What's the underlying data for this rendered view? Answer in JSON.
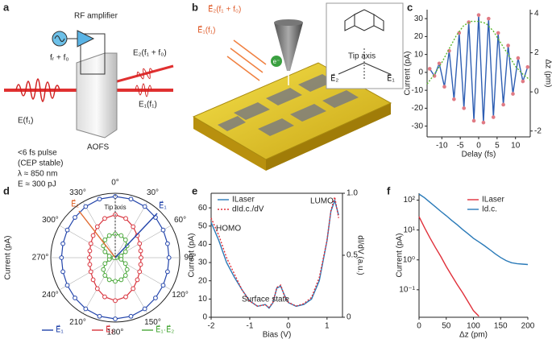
{
  "panel_labels": [
    "a",
    "b",
    "c",
    "d",
    "e",
    "f"
  ],
  "panel_a": {
    "rf_amplifier": "RF amplifier",
    "rf_freq": "fᵣ + f₀",
    "input_field": "E(f₁)",
    "deflected_field": "E₂(f₁ + f₀)",
    "transmitted_field": "E₁(f₁)",
    "aofs": "AOFS",
    "pulse_specs": [
      "<6 fs pulse",
      "(CEP stable)",
      "λ ≈ 850 nm",
      "E ≈ 300 pJ"
    ]
  },
  "panel_b": {
    "field_2": "E⃗₂(f₁ + f₀)",
    "field_1": "E⃗₁(f₁)",
    "electron": "e⁻",
    "inset_title": "Tip axis",
    "inset_field_2": "E⃗₂",
    "inset_field_1": "E⃗₁"
  },
  "chart_data": [
    {
      "type": "line",
      "x_label": "Delay (fs)",
      "y_label": "Current (pA)",
      "y2_label": "Δz (pm)",
      "xlim": [
        -14,
        14
      ],
      "xticks": [
        -10,
        -5,
        0,
        5,
        10
      ],
      "ylim": [
        -36,
        35
      ],
      "yticks": [
        -30,
        -20,
        -10,
        0,
        10,
        20,
        30
      ],
      "y2lim": [
        -2.3,
        4.2
      ],
      "y2ticks": [
        -2,
        0,
        2,
        4
      ],
      "x": [
        -13.3,
        -12,
        -10.7,
        -9.3,
        -8,
        -6.7,
        -5.3,
        -4,
        -2.7,
        -1.3,
        0,
        1.3,
        2.7,
        4,
        5.3,
        6.7,
        8,
        9.3,
        10.7,
        12,
        13.3
      ],
      "series": [
        {
          "color": "#2f5fb3",
          "marker_color": "#e07a84",
          "values": [
            2,
            -2,
            5,
            -8,
            12,
            -15,
            22,
            -20,
            28,
            -27,
            32,
            -28,
            30,
            -25,
            22,
            -18,
            15,
            -12,
            8,
            -5,
            3
          ]
        },
        {
          "color": "#5cb82e",
          "dash": "2,2",
          "axis": "y2",
          "x": [
            -14,
            -12,
            -10,
            -8,
            -6,
            -4,
            -2,
            0,
            2,
            4,
            6,
            8,
            10,
            12,
            14
          ],
          "values": [
            0.4,
            0.9,
            1.5,
            2.2,
            2.9,
            3.4,
            3.6,
            3.6,
            3.5,
            3.1,
            2.5,
            1.9,
            1.3,
            0.9,
            0.6
          ]
        }
      ]
    },
    {
      "type": "polar",
      "y_label": "Current (pA)",
      "rlim": [
        0,
        60
      ],
      "theta": [
        0,
        15,
        30,
        45,
        60,
        75,
        90,
        105,
        120,
        135,
        150,
        165,
        180,
        195,
        210,
        225,
        240,
        255,
        270,
        285,
        300,
        315,
        330,
        345
      ],
      "thetaticks": [
        {
          "value": 0,
          "label": "0°"
        },
        {
          "value": 30,
          "label": "30°"
        },
        {
          "value": 60,
          "label": "60°"
        },
        {
          "value": 90,
          "label": "90°"
        },
        {
          "value": 120,
          "label": "120°"
        },
        {
          "value": 150,
          "label": "150°"
        },
        {
          "value": 180,
          "label": "180°"
        },
        {
          "value": 210,
          "label": "210°"
        },
        {
          "value": 240,
          "label": "240°"
        },
        {
          "value": 270,
          "label": "270°"
        },
        {
          "value": 300,
          "label": "300°"
        },
        {
          "value": 330,
          "label": "330°"
        }
      ],
      "annotations": [
        "Tip axis",
        "E⃗₂",
        "E⃗₁"
      ],
      "series": [
        {
          "name": "E⃗₁",
          "color": "#2244aa",
          "values": [
            57,
            56.5,
            55,
            53,
            51.5,
            50.4,
            50,
            50.4,
            51.5,
            53,
            55,
            56.5,
            57,
            56.5,
            55,
            53,
            51.5,
            50.4,
            50,
            50.4,
            51.5,
            53,
            55,
            56.5
          ]
        },
        {
          "name": "E⃗₂",
          "color": "#d8323c",
          "values": [
            40,
            37.8,
            33.3,
            29.1,
            26.2,
            24.5,
            24,
            24.5,
            26.2,
            29.1,
            33.3,
            37.8,
            40,
            37.8,
            33.3,
            29.1,
            26.2,
            24.5,
            24,
            24.5,
            26.2,
            29.1,
            33.3,
            37.8
          ]
        },
        {
          "name": "E⃗₁·E⃗₂",
          "color": "#4aa83a",
          "values": [
            22,
            21.3,
            19.1,
            15.6,
            11,
            5.7,
            1,
            5.7,
            11,
            15.6,
            19.1,
            21.3,
            22,
            21.3,
            19.1,
            15.6,
            11,
            5.7,
            1,
            5.7,
            11,
            15.6,
            19.1,
            21.3
          ]
        }
      ]
    },
    {
      "type": "line",
      "x_label": "Bias (V)",
      "y_label": "Current (pA)",
      "y2_label": "dI/dV (a.u.)",
      "xlim": [
        -2,
        1.4
      ],
      "xticks": [
        -2,
        -1,
        0,
        1
      ],
      "ylim": [
        0,
        68
      ],
      "yticks": [
        0,
        10,
        20,
        30,
        40,
        50,
        60
      ],
      "y2lim": [
        0,
        1
      ],
      "y2ticks": [
        0,
        0.5,
        {
          "value": 1,
          "label": "1.0"
        }
      ],
      "legend": "upper left",
      "annotations": [
        "HOMO",
        "Surface state",
        "LUMO"
      ],
      "x": [
        -2,
        -1.8,
        -1.6,
        -1.4,
        -1.2,
        -1,
        -0.8,
        -0.6,
        -0.5,
        -0.4,
        -0.3,
        -0.2,
        -0.1,
        0,
        0.2,
        0.4,
        0.6,
        0.8,
        1,
        1.1,
        1.2,
        1.3
      ],
      "series": [
        {
          "name": "ILaser",
          "color": "#2a7ab8",
          "values": [
            52,
            42,
            30,
            22,
            15,
            9,
            6,
            7,
            5,
            8,
            16,
            17,
            12,
            8,
            6,
            7,
            10,
            20,
            42,
            58,
            64,
            56
          ]
        },
        {
          "name": "dId.c./dV",
          "color": "#e0303a",
          "dash": "2,2",
          "axis": "y2",
          "values": [
            0.8,
            0.66,
            0.48,
            0.35,
            0.22,
            0.13,
            0.09,
            0.1,
            0.08,
            0.12,
            0.24,
            0.26,
            0.17,
            0.12,
            0.09,
            0.11,
            0.16,
            0.32,
            0.62,
            0.86,
            0.97,
            0.8
          ]
        }
      ]
    },
    {
      "type": "line",
      "x_label": "Δz (pm)",
      "y_label": "Current (pA)",
      "log_y": true,
      "xlim": [
        0,
        200
      ],
      "xticks": [
        0,
        50,
        100,
        150,
        200
      ],
      "ylim": [
        0.012,
        170
      ],
      "yticks": [
        {
          "value": 0.1,
          "label": "10⁻¹"
        },
        {
          "value": 1,
          "label": "10⁰"
        },
        {
          "value": 10,
          "label": "10¹"
        },
        {
          "value": 100,
          "label": "10²"
        }
      ],
      "legend": "upper right",
      "x": [
        0,
        10,
        20,
        30,
        40,
        50,
        60,
        70,
        80,
        90,
        100,
        110,
        120,
        130,
        140,
        150,
        160,
        170,
        180,
        190,
        200
      ],
      "series": [
        {
          "name": "ILaser",
          "color": "#e0303a",
          "values": [
            28,
            12,
            5.5,
            2.6,
            1.3,
            0.6,
            0.3,
            0.15,
            0.08,
            0.04,
            0.02,
            0.013,
            null,
            null,
            null,
            null,
            null,
            null,
            null,
            null,
            null
          ]
        },
        {
          "name": "Id.c.",
          "color": "#2a7ab8",
          "values": [
            160,
            120,
            85,
            60,
            42,
            30,
            21,
            15,
            10.5,
            7.5,
            5.3,
            4,
            3,
            2.2,
            1.6,
            1.2,
            0.95,
            0.8,
            0.75,
            0.72,
            0.7
          ]
        }
      ]
    }
  ]
}
